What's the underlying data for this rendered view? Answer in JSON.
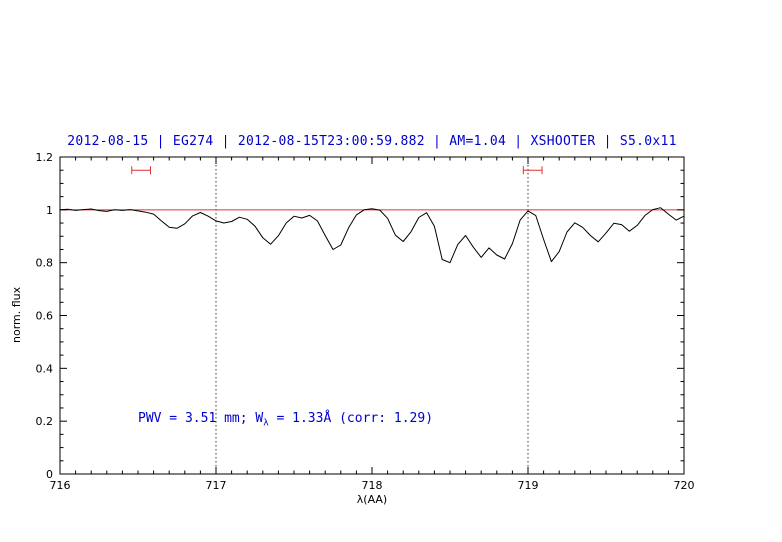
{
  "chart_data": {
    "type": "line",
    "title": "2012-08-15 | EG274 | 2012-08-15T23:00:59.882 | AM=1.04 | XSHOOTER | S5.0x11",
    "title_color": "#0000cc",
    "xlabel": "λ(AA)",
    "ylabel": "norm. flux",
    "xlim": [
      716,
      720
    ],
    "ylim": [
      0,
      1.2
    ],
    "x_major_ticks": [
      716,
      717,
      718,
      719,
      720
    ],
    "x_tick_labels": [
      "716",
      "717",
      "718",
      "719",
      "720"
    ],
    "y_major_ticks": [
      0,
      0.2,
      0.4,
      0.6,
      0.8,
      1,
      1.2
    ],
    "y_tick_labels": [
      "0",
      "0.2",
      "0.4",
      "0.6",
      "0.8",
      "1",
      "1.2"
    ],
    "x_minor_step": 0.1,
    "y_minor_step": 0.05,
    "grid_vlines": [
      717,
      719
    ],
    "grid_style": "dotted-vertical",
    "continuum_line": {
      "y": 1.0,
      "color": "#e03030"
    },
    "marker_color": "#e03030",
    "range_markers": [
      {
        "x_center": 716.52,
        "half_width": 0.06,
        "y": 1.15
      },
      {
        "x_center": 719.03,
        "half_width": 0.06,
        "y": 1.15
      }
    ],
    "annotation": {
      "prefix": "PWV = 3.51 mm; W",
      "sub": "λ",
      "suffix": " = 1.33Å (corr: 1.29)",
      "color": "#0000cc",
      "x": 716.5,
      "y": 0.2
    },
    "legend": "none",
    "series": [
      {
        "name": "spectrum",
        "color": "#000000",
        "x_start": 716.0,
        "x_step": 0.05,
        "values": [
          1.0,
          1.002,
          0.998,
          1.001,
          1.003,
          0.997,
          0.994,
          1.0,
          0.998,
          1.001,
          0.996,
          0.991,
          0.984,
          0.958,
          0.934,
          0.93,
          0.947,
          0.977,
          0.99,
          0.976,
          0.958,
          0.95,
          0.956,
          0.972,
          0.964,
          0.938,
          0.894,
          0.87,
          0.902,
          0.95,
          0.976,
          0.969,
          0.979,
          0.958,
          0.903,
          0.85,
          0.867,
          0.932,
          0.981,
          1.0,
          1.004,
          0.999,
          0.968,
          0.904,
          0.88,
          0.917,
          0.971,
          0.989,
          0.938,
          0.812,
          0.8,
          0.869,
          0.903,
          0.858,
          0.82,
          0.856,
          0.829,
          0.814,
          0.872,
          0.962,
          0.996,
          0.978,
          0.888,
          0.804,
          0.842,
          0.916,
          0.951,
          0.934,
          0.903,
          0.879,
          0.912,
          0.949,
          0.944,
          0.919,
          0.941,
          0.979,
          1.001,
          1.008,
          0.984,
          0.961,
          0.976
        ]
      }
    ]
  }
}
